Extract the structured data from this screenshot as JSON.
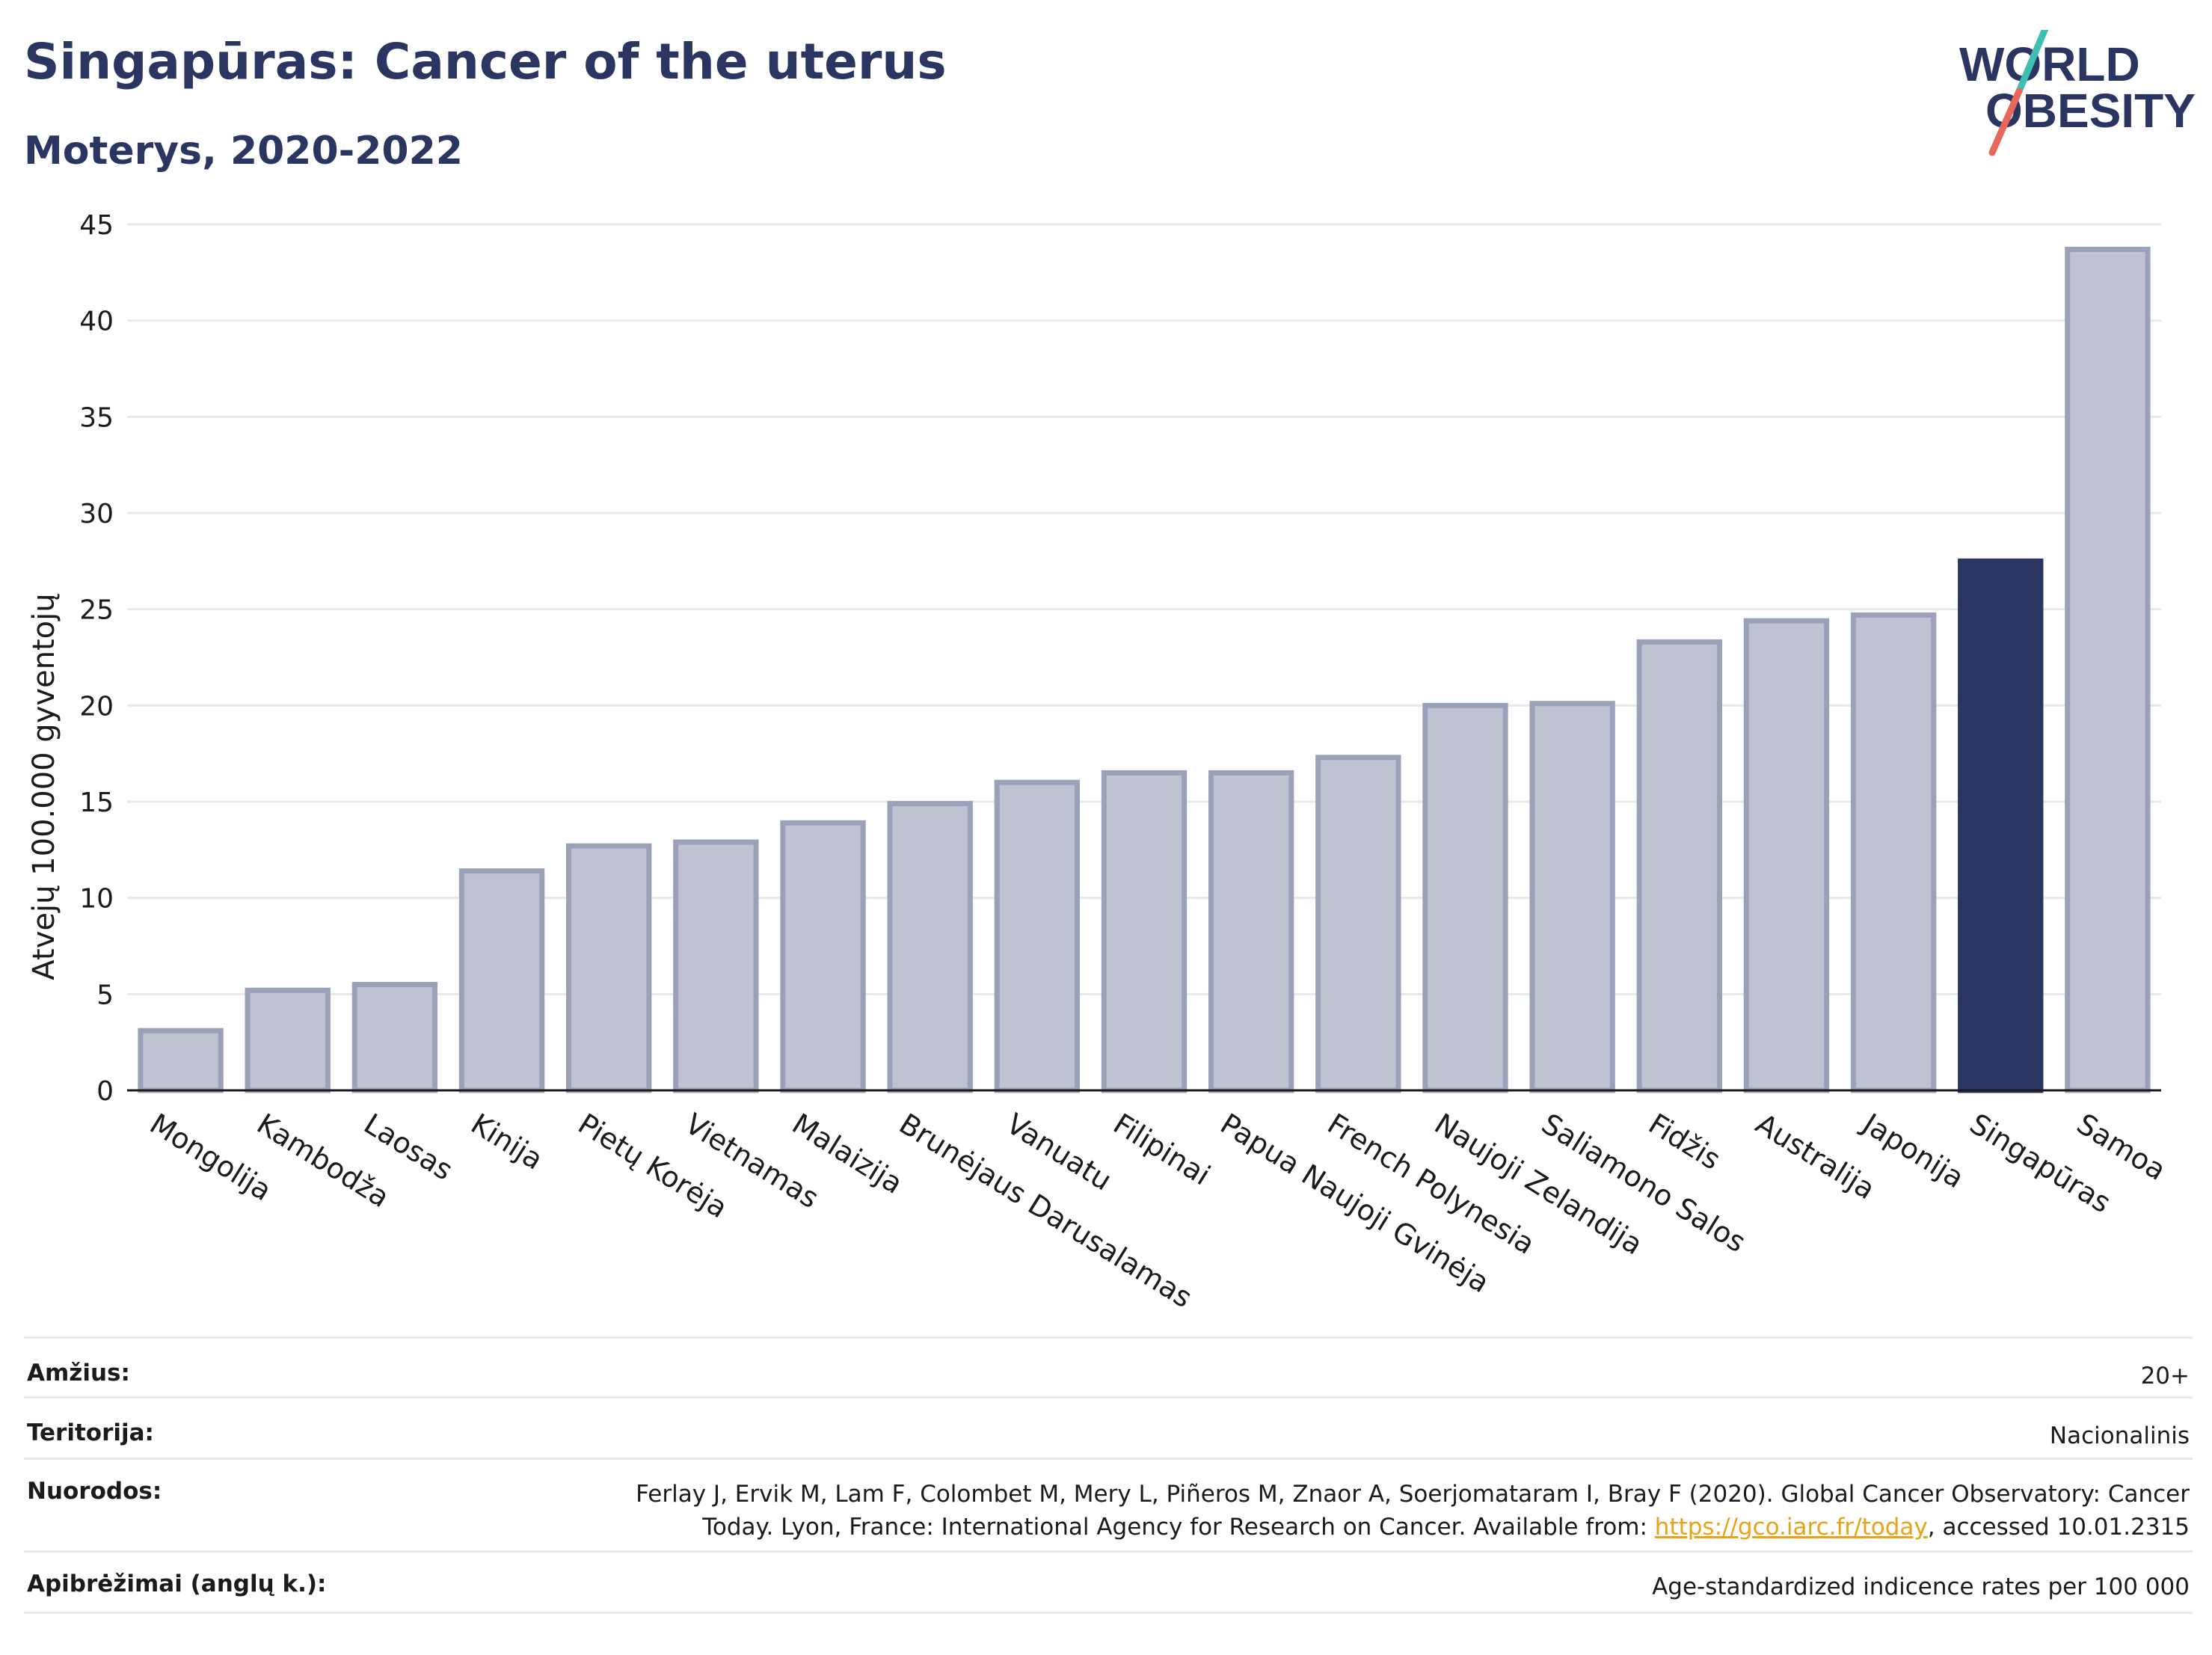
{
  "header": {
    "title": "Singapūras: Cancer of the uterus",
    "subtitle": "Moterys, 2020-2022"
  },
  "logo": {
    "line1": "WORLD",
    "line2": "OBESITY"
  },
  "colors": {
    "highlight": "#2b3561",
    "bar_fill": "#bfc3d1",
    "bar_stroke": "#9ba1b8",
    "grid": "#e6e8ef",
    "logo_teal": "#3fbfb3",
    "logo_coral": "#e8675b",
    "link": "#e8a317"
  },
  "chart_data": {
    "type": "bar",
    "ylabel": "Atvejų 100.000 gyventojų",
    "ylim": [
      0,
      45
    ],
    "yticks": [
      0,
      5,
      10,
      15,
      20,
      25,
      30,
      35,
      40,
      45
    ],
    "grid": true,
    "highlight_category": "Singapūras",
    "categories": [
      "Mongolija",
      "Kambodža",
      "Laosas",
      "Kinija",
      "Pietų Korėja",
      "Vietnamas",
      "Malaizija",
      "Brunėjaus Darusalamas",
      "Vanuatu",
      "Filipinai",
      "Papua Naujoji Gvinėja",
      "French Polynesia",
      "Naujoji Zelandija",
      "Saliamono Salos",
      "Fidžis",
      "Australija",
      "Japonija",
      "Singapūras",
      "Samoa"
    ],
    "values": [
      3.1,
      5.2,
      5.5,
      11.4,
      12.7,
      12.9,
      13.9,
      14.9,
      16.0,
      16.5,
      16.5,
      17.3,
      20.0,
      20.1,
      23.3,
      24.4,
      24.7,
      27.5,
      43.7
    ]
  },
  "info": {
    "age_label": "Amžius:",
    "age_value": "20+",
    "territory_label": "Teritorija:",
    "territory_value": "Nacionalinis",
    "refs_label": "Nuorodos:",
    "refs_line1": "Ferlay J, Ervik M, Lam F, Colombet M, Mery L, Piñeros M, Znaor A, Soerjomataram I, Bray F (2020). Global Cancer Observatory: Cancer",
    "refs_line2_pre": "Today. Lyon, France: International Agency for Research on Cancer. Available from: ",
    "refs_link": "https://gco.iarc.fr/today",
    "refs_line2_post": ", accessed 10.01.2315",
    "defs_label": "Apibrėžimai (anglų k.):",
    "defs_value": "Age-standardized indicence rates per 100 000"
  }
}
